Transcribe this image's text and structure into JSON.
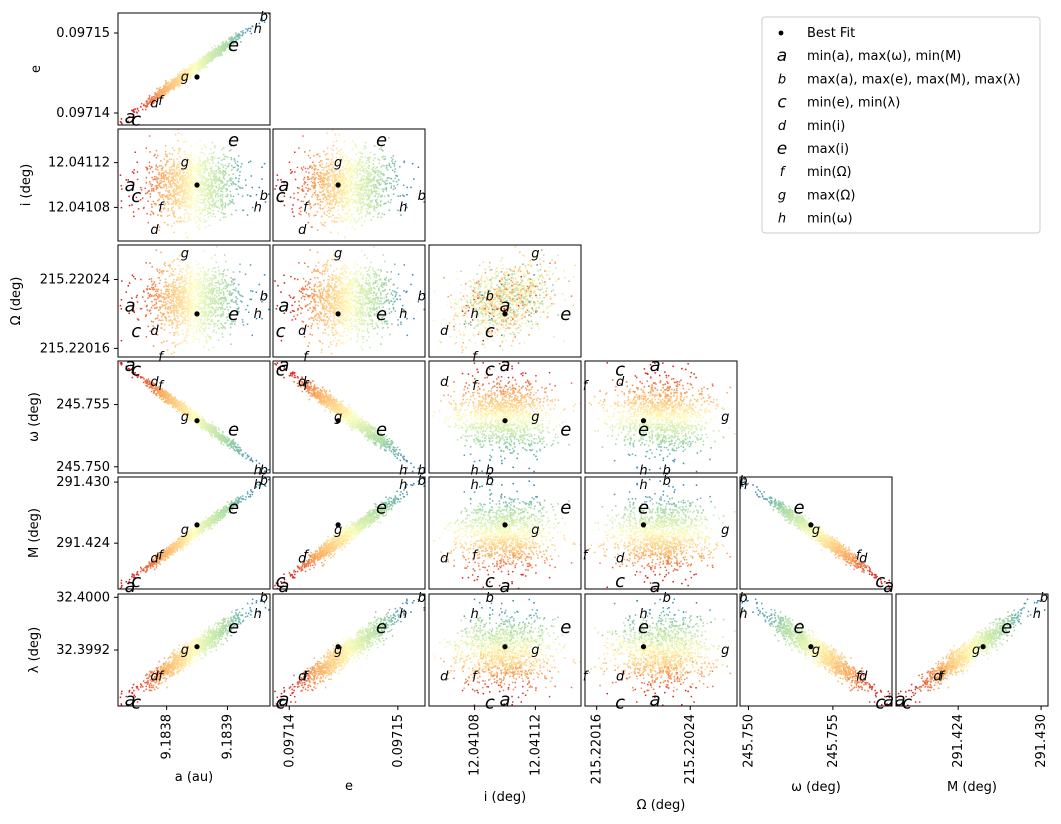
{
  "chart_data": {
    "type": "scatter",
    "title": "",
    "variables": [
      {
        "key": "a",
        "label": "a (au)",
        "center": 9.18385,
        "range": [
          9.18372,
          9.18397
        ],
        "ticks": [
          "9.1838",
          "9.1839"
        ],
        "tick_values": [
          9.1838,
          9.1839
        ]
      },
      {
        "key": "e",
        "label": "e",
        "center": 0.0971445,
        "range": [
          0.0971385,
          0.0971525
        ],
        "ticks": [
          "0.09714",
          "0.09715"
        ],
        "tick_values": [
          0.09714,
          0.09715
        ]
      },
      {
        "key": "i",
        "label": "i (deg)",
        "center": 12.0411,
        "range": [
          12.04105,
          12.04115
        ],
        "ticks": [
          "12.04108",
          "12.04112"
        ],
        "tick_values": [
          12.04108,
          12.04112
        ]
      },
      {
        "key": "Omega",
        "label": "Ω (deg)",
        "center": 215.2202,
        "range": [
          215.22015,
          215.22028
        ],
        "ticks": [
          "215.22016",
          "215.22024"
        ],
        "tick_values": [
          215.22016,
          215.22024
        ]
      },
      {
        "key": "omega",
        "label": "ω (deg)",
        "center": 245.7537,
        "range": [
          245.7495,
          245.7585
        ],
        "ticks": [
          "245.750",
          "245.755"
        ],
        "tick_values": [
          245.75,
          245.755
        ]
      },
      {
        "key": "M",
        "label": "M (deg)",
        "center": 291.4265,
        "range": [
          291.4195,
          291.4305
        ],
        "ticks": [
          "291.424",
          "291.430"
        ],
        "tick_values": [
          291.424,
          291.43
        ]
      },
      {
        "key": "lambda",
        "label": "λ (deg)",
        "center": 32.39925,
        "range": [
          32.39835,
          32.40005
        ],
        "ticks": [
          "32.3992",
          "32.4000"
        ],
        "tick_values": [
          32.3992,
          32.4
        ]
      }
    ],
    "correlations": {
      "1,0": 0.99,
      "2,0": 0.0,
      "2,1": 0.0,
      "3,0": 0.0,
      "3,1": 0.0,
      "3,2": 0.3,
      "4,0": -0.99,
      "4,1": -0.98,
      "4,2": 0.0,
      "4,3": 0.0,
      "5,0": 0.99,
      "5,1": 0.98,
      "5,2": 0.0,
      "5,3": 0.0,
      "5,4": -0.99,
      "6,0": 0.95,
      "6,1": 0.99,
      "6,2": 0.0,
      "6,3": 0.0,
      "6,4": -0.93,
      "6,5": 0.95
    },
    "markers": {
      "a": {
        "a": 9.18374,
        "e": 0.0971395,
        "i": 12.0411,
        "Omega": 215.22021,
        "omega": 245.7583,
        "M": 291.4198,
        "lambda": 32.39845
      },
      "b": {
        "a": 9.18396,
        "e": 0.0971522,
        "i": 12.04109,
        "Omega": 215.22022,
        "omega": 245.7497,
        "M": 291.4302,
        "lambda": 32.40002
      },
      "c": {
        "a": 9.18375,
        "e": 0.0971392,
        "i": 12.04109,
        "Omega": 215.22018,
        "omega": 245.7578,
        "M": 291.4203,
        "lambda": 32.3984
      },
      "d": {
        "a": 9.18378,
        "e": 0.0971412,
        "i": 12.04106,
        "Omega": 215.22018,
        "omega": 245.7568,
        "M": 291.4225,
        "lambda": 32.3988
      },
      "e": {
        "a": 9.18391,
        "e": 0.0971485,
        "i": 12.04114,
        "Omega": 215.2202,
        "omega": 245.753,
        "M": 291.4275,
        "lambda": 32.39955
      },
      "f": {
        "a": 9.18379,
        "e": 0.0971415,
        "i": 12.04108,
        "Omega": 215.22015,
        "omega": 245.7565,
        "M": 291.4228,
        "lambda": 32.3988
      },
      "g": {
        "a": 9.18383,
        "e": 0.0971445,
        "i": 12.04112,
        "Omega": 215.22027,
        "omega": 245.754,
        "M": 291.4253,
        "lambda": 32.3992
      },
      "h": {
        "a": 9.18395,
        "e": 0.0971505,
        "i": 12.04108,
        "Omega": 215.2202,
        "omega": 245.7497,
        "M": 291.4297,
        "lambda": 32.39975
      }
    },
    "best_fit": {
      "a": 9.18385,
      "e": 0.0971445,
      "i": 12.0411,
      "Omega": 215.2202,
      "omega": 245.7537,
      "M": 291.4258,
      "lambda": 32.39925
    },
    "legend": {
      "placement": "top-right",
      "entries": [
        {
          "symbol": "•",
          "text": "Best Fit"
        },
        {
          "symbol": "a",
          "text": "min(a), max(ω), min(M)"
        },
        {
          "symbol": "b",
          "text": "max(a), max(e), max(M), max(λ)"
        },
        {
          "symbol": "c",
          "text": "min(e), min(λ)"
        },
        {
          "symbol": "d",
          "text": "min(i)"
        },
        {
          "symbol": "e",
          "text": "max(i)"
        },
        {
          "symbol": "f",
          "text": "min(Ω)"
        },
        {
          "symbol": "g",
          "text": "max(Ω)"
        },
        {
          "symbol": "h",
          "text": "min(ω)"
        }
      ]
    },
    "colormap": [
      "#d7191c",
      "#fdae61",
      "#ffffbf",
      "#abdda4",
      "#2b83ba"
    ],
    "points_per_panel": 1400
  }
}
